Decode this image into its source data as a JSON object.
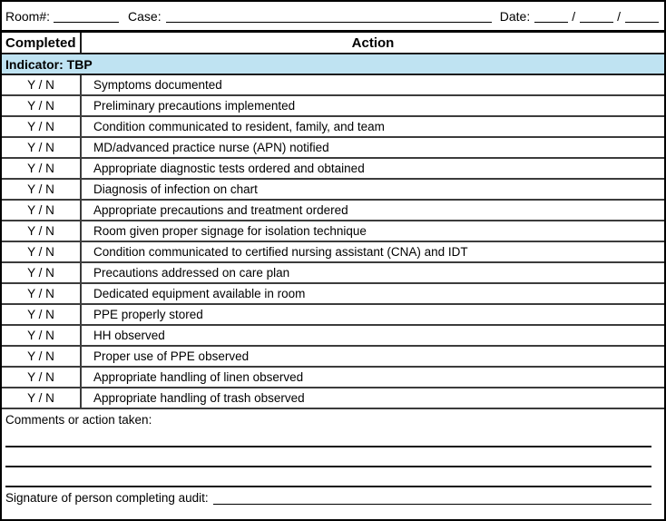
{
  "form": {
    "header_fields": {
      "room_label": "Room#:",
      "case_label": "Case:",
      "date_label": "Date:",
      "date_separator": "/"
    },
    "table": {
      "columns": {
        "completed": "Completed",
        "action": "Action"
      },
      "indicator_label": "Indicator: TBP",
      "yn_label": "Y / N",
      "rows": [
        "Symptoms documented",
        "Preliminary precautions implemented",
        "Condition communicated to resident, family, and team",
        "MD/advanced practice nurse (APN) notified",
        "Appropriate diagnostic tests ordered and obtained",
        "Diagnosis of infection on chart",
        "Appropriate precautions and treatment ordered",
        "Room given proper signage for isolation technique",
        "Condition communicated to certified nursing assistant (CNA) and IDT",
        "Precautions addressed on care plan",
        "Dedicated equipment available in room",
        "PPE properly stored",
        "HH observed",
        "Proper use of PPE observed",
        "Appropriate handling of linen observed",
        "Appropriate handling of trash observed"
      ]
    },
    "comments": {
      "label": "Comments or action taken:",
      "line_count": 3
    },
    "signature": {
      "label": "Signature of person completing audit:"
    },
    "colors": {
      "indicator_bg": "#BFE3F2",
      "border": "#000000"
    }
  }
}
